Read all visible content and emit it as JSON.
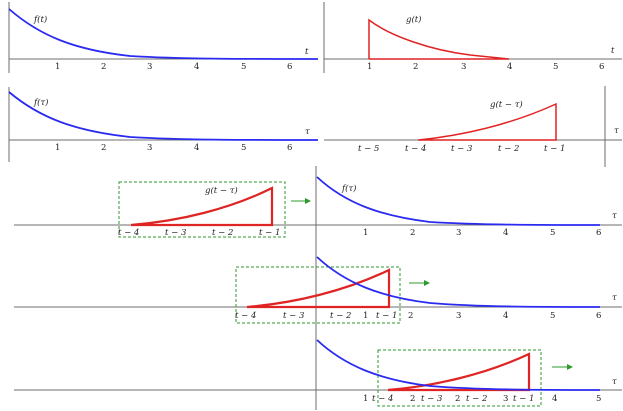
{
  "panels": {
    "p1": {
      "func_label": "f(t)",
      "axis_label": "t",
      "ticks": [
        "1",
        "2",
        "3",
        "4",
        "5",
        "6"
      ]
    },
    "p2": {
      "func_label": "g(t)",
      "axis_label": "t",
      "ticks": [
        "1",
        "2",
        "3",
        "4",
        "5",
        "6"
      ]
    },
    "p3": {
      "func_label": "f(τ)",
      "axis_label": "τ",
      "ticks": [
        "1",
        "2",
        "3",
        "4",
        "5",
        "6"
      ]
    },
    "p4": {
      "func_label": "g(t − τ)",
      "axis_label": "τ",
      "ticks": [
        "t − 5",
        "t − 4",
        "t − 3",
        "t − 2",
        "t − 1"
      ]
    },
    "r1": {
      "g_label": "g(t − τ)",
      "f_label": "f(τ)",
      "axis_label": "τ",
      "g_ticks": [
        "t − 4",
        "t − 3",
        "t − 2",
        "t − 1"
      ],
      "f_ticks": [
        "1",
        "2",
        "3",
        "4",
        "5",
        "6"
      ]
    },
    "r2": {
      "axis_label": "τ",
      "ticks": [
        "t − 4",
        "t − 3",
        "t − 2",
        "1",
        "t − 1",
        "2",
        "3",
        "4",
        "5",
        "6"
      ]
    },
    "r3": {
      "axis_label": "τ",
      "ticks": [
        "1",
        "t − 4",
        "2",
        "t − 3",
        "2",
        "t − 2",
        "3",
        "t − 1",
        "4",
        "5"
      ]
    }
  },
  "colors": {
    "f": "#2a2af0",
    "g": "#e02424",
    "window": "#2e9a2e",
    "axis": "#6e6e6e"
  }
}
